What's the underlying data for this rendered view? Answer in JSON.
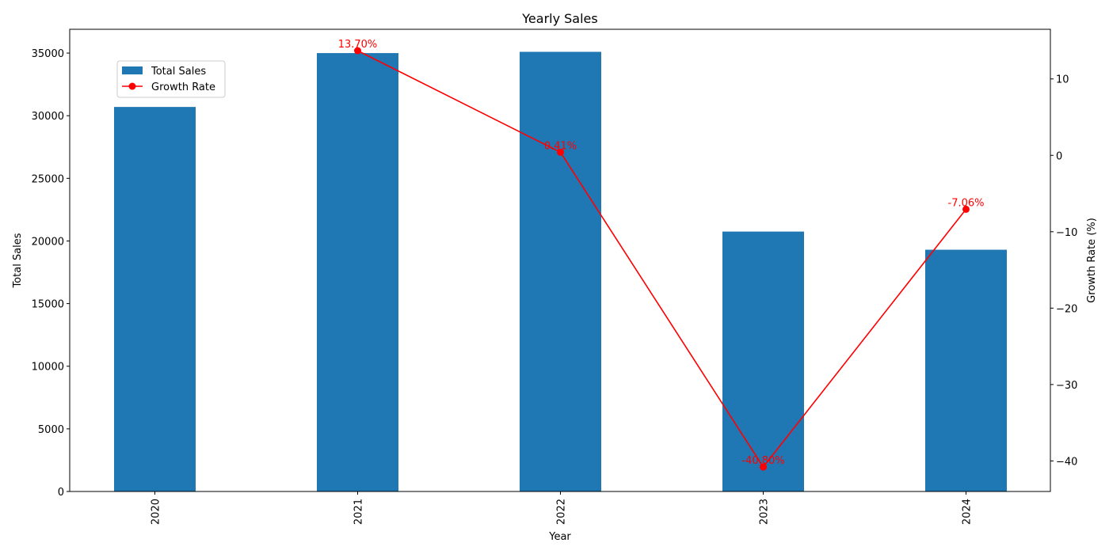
{
  "chart_data": {
    "type": "bar",
    "title": "Yearly Sales",
    "xlabel": "Year",
    "ylabel": "Total Sales",
    "y2label": "Growth Rate (%)",
    "categories": [
      "2020",
      "2021",
      "2022",
      "2023",
      "2024"
    ],
    "series": [
      {
        "name": "Total Sales",
        "type": "bar",
        "axis": "left",
        "values": [
          30700,
          35000,
          35100,
          20750,
          19300
        ]
      },
      {
        "name": "Growth Rate",
        "type": "line",
        "axis": "right",
        "values": [
          null,
          13.7,
          0.41,
          -40.8,
          -7.06
        ],
        "labels": [
          "",
          "13.70%",
          "0.41%",
          "-40.80%",
          "-7.06%"
        ]
      }
    ],
    "ylim": [
      0,
      36900
    ],
    "y2lim": [
      -44,
      16.5
    ],
    "yticks": [
      "0",
      "5000",
      "10000",
      "15000",
      "20000",
      "25000",
      "30000",
      "35000"
    ],
    "y2ticks": [
      "−40",
      "−30",
      "−20",
      "−10",
      "0",
      "10"
    ],
    "legend_position": "top-left",
    "grid": false,
    "colors": {
      "bar": "#1f77b4",
      "line": "#ff0000"
    }
  }
}
